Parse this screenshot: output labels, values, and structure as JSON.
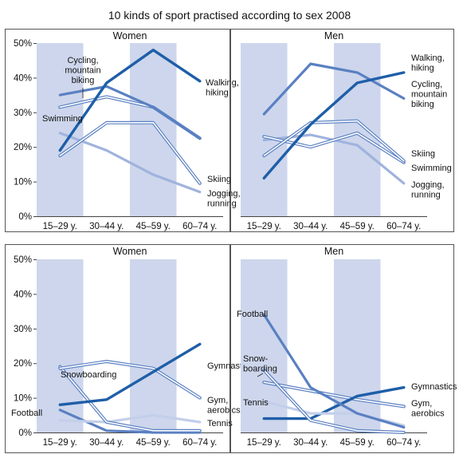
{
  "figure": {
    "title": "10 kinds of sport practised according to sex 2008"
  },
  "colors": {
    "band": "#cdd6ec",
    "axis": "#444444",
    "frame": "#555555",
    "dark": "#1e5ea8",
    "medium": "#5a80c2",
    "light": "#9fb3dd",
    "pale": "#c3cfea"
  },
  "chart_data": [
    {
      "type": "line",
      "title": "Women",
      "categories": [
        "15–29 y.",
        "30–44 y.",
        "45–59 y.",
        "60–74 y."
      ],
      "ylim": [
        0,
        50
      ],
      "yticks": [
        "0%",
        "10%",
        "20%",
        "30%",
        "40%",
        "50%"
      ],
      "grid": false,
      "series": [
        {
          "name": "Walking, hiking",
          "label_lines": [
            "Walking,",
            "hiking"
          ],
          "values": [
            19,
            38.5,
            48,
            39
          ],
          "style": "dark"
        },
        {
          "name": "Cycling, mountain biking",
          "label_lines": [
            "Cycling,",
            "mountain",
            "biking"
          ],
          "values": [
            35,
            37.5,
            31.5,
            22.5
          ],
          "style": "medium"
        },
        {
          "name": "Swimming",
          "label_lines": [
            "Swimming"
          ],
          "values": [
            31.5,
            34.5,
            31.5,
            22.5
          ],
          "style": "double"
        },
        {
          "name": "Skiing",
          "label_lines": [
            "Skiing"
          ],
          "values": [
            17.5,
            27,
            27,
            9.5
          ],
          "style": "double"
        },
        {
          "name": "Jogging, running",
          "label_lines": [
            "Jogging,",
            "running"
          ],
          "values": [
            24,
            19,
            12,
            7
          ],
          "style": "light"
        }
      ]
    },
    {
      "type": "line",
      "title": "Men",
      "categories": [
        "15–29 y.",
        "30–44 y.",
        "45–59 y.",
        "60–74 y."
      ],
      "ylim": [
        0,
        50
      ],
      "yticks": [
        "0%",
        "10%",
        "20%",
        "30%",
        "40%",
        "50%"
      ],
      "grid": false,
      "series": [
        {
          "name": "Walking, hiking",
          "label_lines": [
            "Walking,",
            "hiking"
          ],
          "values": [
            11,
            26.5,
            38.5,
            41.5
          ],
          "style": "dark"
        },
        {
          "name": "Cycling, mountain biking",
          "label_lines": [
            "Cycling,",
            "mountain",
            "biking"
          ],
          "values": [
            29.5,
            44,
            41.5,
            34
          ],
          "style": "medium"
        },
        {
          "name": "Skiing",
          "label_lines": [
            "Skiing"
          ],
          "values": [
            17.5,
            27,
            27.5,
            16
          ],
          "style": "double"
        },
        {
          "name": "Swimming",
          "label_lines": [
            "Swimming"
          ],
          "values": [
            23,
            20,
            24,
            15.5
          ],
          "style": "double"
        },
        {
          "name": "Jogging, running",
          "label_lines": [
            "Jogging,",
            "running"
          ],
          "values": [
            22,
            23.5,
            20.5,
            9.5
          ],
          "style": "light"
        }
      ]
    },
    {
      "type": "line",
      "title": "Women",
      "categories": [
        "15–29 y.",
        "30–44 y.",
        "45–59 y.",
        "60–74 y."
      ],
      "ylim": [
        0,
        50
      ],
      "yticks": [
        "0%",
        "10%",
        "20%",
        "30%",
        "40%",
        "50%"
      ],
      "grid": false,
      "series": [
        {
          "name": "Gymnastics",
          "label_lines": [
            "Gymnastics"
          ],
          "values": [
            8,
            9.5,
            17.5,
            25.5
          ],
          "style": "dark"
        },
        {
          "name": "Gym, aerobics",
          "label_lines": [
            "Gym,",
            "aerobics"
          ],
          "values": [
            18.5,
            20.5,
            18.5,
            10
          ],
          "style": "double"
        },
        {
          "name": "Snowboarding",
          "label_lines": [
            "Snowboarding"
          ],
          "values": [
            19,
            3,
            0.5,
            0.5
          ],
          "style": "double"
        },
        {
          "name": "Tennis",
          "label_lines": [
            "Tennis"
          ],
          "values": [
            3.5,
            3,
            5,
            3
          ],
          "style": "pale"
        },
        {
          "name": "Football",
          "label_lines": [
            "Football"
          ],
          "values": [
            6.5,
            0.5,
            0,
            0
          ],
          "style": "medium"
        }
      ]
    },
    {
      "type": "line",
      "title": "Men",
      "categories": [
        "15–29 y.",
        "30–44 y.",
        "45–59 y.",
        "60–74 y."
      ],
      "ylim": [
        0,
        50
      ],
      "yticks": [
        "0%",
        "10%",
        "20%",
        "30%",
        "40%",
        "50%"
      ],
      "grid": false,
      "series": [
        {
          "name": "Football",
          "label_lines": [
            "Football"
          ],
          "values": [
            34,
            13,
            5.5,
            1.5
          ],
          "style": "medium"
        },
        {
          "name": "Snowboarding",
          "label_lines": [
            "Snow-",
            "boarding"
          ],
          "values": [
            18,
            3.5,
            0.5,
            0
          ],
          "style": "double"
        },
        {
          "name": "Tennis",
          "label_lines": [
            "Tennis"
          ],
          "values": [
            9,
            5.5,
            5.5,
            2
          ],
          "style": "pale"
        },
        {
          "name": "Gymnastics",
          "label_lines": [
            "Gymnastics"
          ],
          "values": [
            4,
            4,
            10.5,
            13
          ],
          "style": "dark"
        },
        {
          "name": "Gym, aerobics",
          "label_lines": [
            "Gym,",
            "aerobics"
          ],
          "values": [
            14.5,
            12,
            9.5,
            7.5
          ],
          "style": "double"
        }
      ]
    }
  ]
}
